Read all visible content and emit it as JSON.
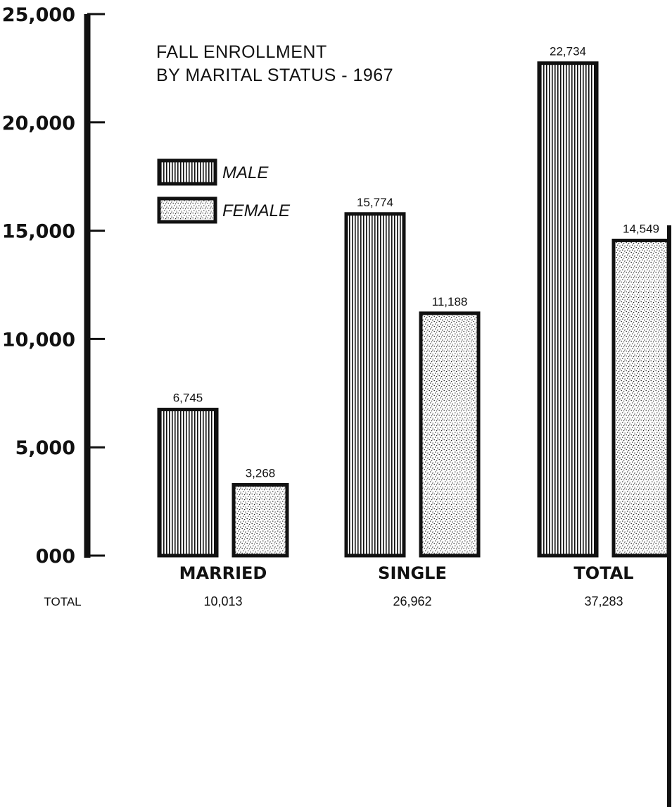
{
  "chart_data": {
    "type": "bar",
    "title": "FALL ENROLLMENT",
    "subtitle": "BY MARITAL STATUS - 1967",
    "categories": [
      "MARRIED",
      "SINGLE",
      "TOTAL"
    ],
    "series": [
      {
        "name": "MALE",
        "pattern": "vertical-lines",
        "values": [
          6745,
          15774,
          22734
        ],
        "labels": [
          "6,745",
          "15,774",
          "22,734"
        ]
      },
      {
        "name": "FEMALE",
        "pattern": "stipple",
        "values": [
          3268,
          11188,
          14549
        ],
        "labels": [
          "3,268",
          "11,188",
          "14,549"
        ]
      }
    ],
    "y_ticks": [
      {
        "value": 0,
        "label": "000"
      },
      {
        "value": 5000,
        "label": "5,000"
      },
      {
        "value": 10000,
        "label": "10,000"
      },
      {
        "value": 15000,
        "label": "15,000"
      },
      {
        "value": 20000,
        "label": "20,000"
      },
      {
        "value": 25000,
        "label": "25,000"
      }
    ],
    "ylim": [
      0,
      25000
    ],
    "totals_label": "TOTAL",
    "totals": [
      "10,013",
      "26,962",
      "37,283"
    ],
    "legend_position": "upper-left",
    "grid": false,
    "colors": {
      "ink": "#111111",
      "paper": "#ffffff"
    }
  }
}
